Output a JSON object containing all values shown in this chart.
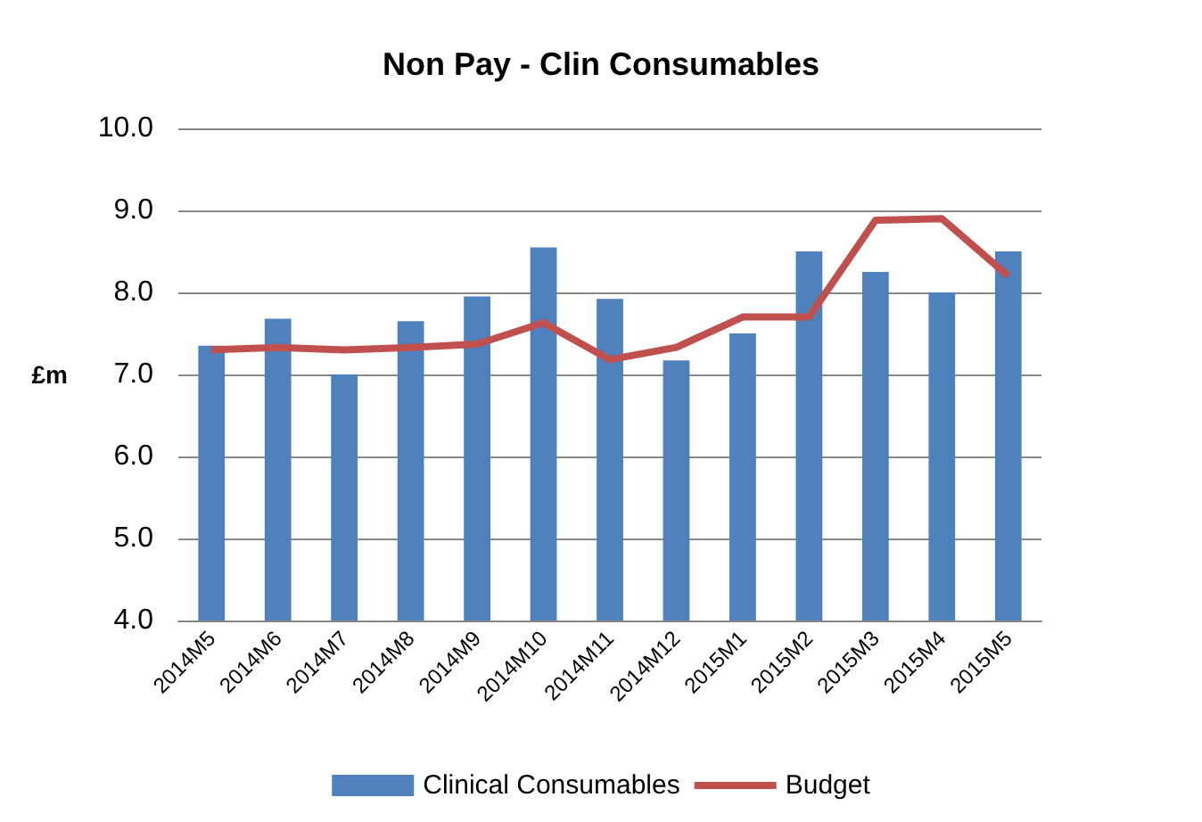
{
  "chart_data": {
    "type": "bar",
    "title": "Non Pay - Clin Consumables",
    "ylabel": "£m",
    "categories": [
      "2014M5",
      "2014M6",
      "2014M7",
      "2014M8",
      "2014M9",
      "2014M10",
      "2014M11",
      "2014M12",
      "2015M1",
      "2015M2",
      "2015M3",
      "2015M4",
      "2015M5"
    ],
    "series": [
      {
        "name": "Clinical Consumables",
        "color": "#4f81bd",
        "values": [
          7.35,
          7.68,
          7.0,
          7.65,
          7.95,
          8.55,
          7.92,
          7.17,
          7.5,
          8.5,
          8.25,
          8.0,
          8.5
        ]
      },
      {
        "name": "Budget",
        "type": "line",
        "color": "#c0504d",
        "values": [
          7.3,
          7.33,
          7.3,
          7.33,
          7.37,
          7.63,
          7.18,
          7.33,
          7.7,
          7.7,
          8.88,
          8.9,
          8.2
        ]
      }
    ],
    "ylim": [
      4,
      10
    ],
    "yticks": [
      {
        "value": 4,
        "label": "4.0"
      },
      {
        "value": 5,
        "label": "5.0"
      },
      {
        "value": 6,
        "label": "6.0"
      },
      {
        "value": 7,
        "label": "7.0"
      },
      {
        "value": 8,
        "label": "8.0"
      },
      {
        "value": 9,
        "label": "9.0"
      },
      {
        "value": 10,
        "label": "10.0"
      }
    ],
    "grid": "y",
    "legend": "bottom",
    "marker": "none"
  }
}
